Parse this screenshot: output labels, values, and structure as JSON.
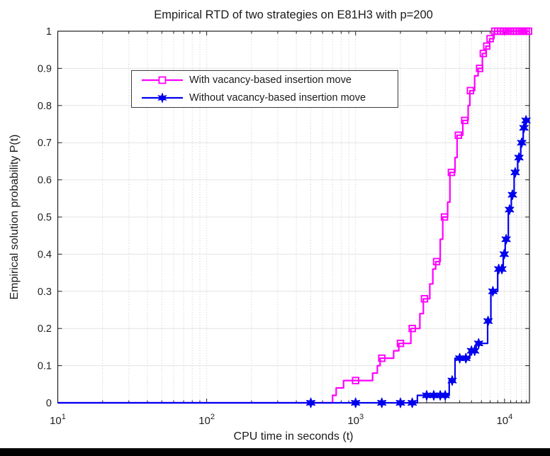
{
  "figure": {
    "background": "#ffffff",
    "bottom_bar_color": "#000000"
  },
  "chart_data": {
    "type": "line",
    "subtype": "empirical-step-cdf",
    "title": "Empirical RTD of two strategies on E81H3 with p=200",
    "xlabel": "CPU time in seconds (t)",
    "ylabel": "Empirical solution probability P(t)",
    "x_scale": "log10",
    "xlim": [
      10,
      14700
    ],
    "ylim": [
      0,
      1
    ],
    "grid": {
      "horizontal": "solid",
      "vertical": "dotted"
    },
    "legend_position": "upper-left-inside",
    "colors": {
      "axis": "#1f1f1f",
      "tick_text": "#1f1f1f",
      "grid_horizontal": "#e4e4e4",
      "grid_vertical": "#c9c9c9"
    },
    "x_major_ticks": [
      {
        "value": 10,
        "base": "10",
        "exp": "1"
      },
      {
        "value": 100,
        "base": "10",
        "exp": "2"
      },
      {
        "value": 1000,
        "base": "10",
        "exp": "3"
      },
      {
        "value": 10000,
        "base": "10",
        "exp": "4"
      }
    ],
    "x_minor_ticks": [
      20,
      30,
      40,
      50,
      60,
      70,
      80,
      90,
      200,
      300,
      400,
      500,
      600,
      700,
      800,
      900,
      2000,
      3000,
      4000,
      5000,
      6000,
      7000,
      8000,
      9000,
      11000,
      12000,
      13000,
      14000
    ],
    "y_ticks": [
      {
        "value": 0,
        "label": "0"
      },
      {
        "value": 0.1,
        "label": "0.1"
      },
      {
        "value": 0.2,
        "label": "0.2"
      },
      {
        "value": 0.3,
        "label": "0.3"
      },
      {
        "value": 0.4,
        "label": "0.4"
      },
      {
        "value": 0.5,
        "label": "0.5"
      },
      {
        "value": 0.6,
        "label": "0.6"
      },
      {
        "value": 0.7,
        "label": "0.7"
      },
      {
        "value": 0.8,
        "label": "0.8"
      },
      {
        "value": 0.9,
        "label": "0.9"
      },
      {
        "value": 1,
        "label": "1"
      }
    ],
    "series": [
      {
        "name": "With vacancy-based insertion move",
        "color": "#ff00ff",
        "marker": "open-square",
        "line_width": 2.2,
        "steps": [
          [
            700,
            0.02
          ],
          [
            740,
            0.04
          ],
          [
            830,
            0.06
          ],
          [
            1300,
            0.08
          ],
          [
            1400,
            0.1
          ],
          [
            1460,
            0.12
          ],
          [
            1800,
            0.14
          ],
          [
            1950,
            0.16
          ],
          [
            2350,
            0.2
          ],
          [
            2700,
            0.24
          ],
          [
            2850,
            0.28
          ],
          [
            3150,
            0.32
          ],
          [
            3300,
            0.36
          ],
          [
            3450,
            0.38
          ],
          [
            3700,
            0.44
          ],
          [
            3850,
            0.5
          ],
          [
            4150,
            0.54
          ],
          [
            4300,
            0.62
          ],
          [
            4650,
            0.66
          ],
          [
            4800,
            0.72
          ],
          [
            5250,
            0.76
          ],
          [
            5700,
            0.8
          ],
          [
            5850,
            0.84
          ],
          [
            6300,
            0.88
          ],
          [
            6650,
            0.9
          ],
          [
            7100,
            0.94
          ],
          [
            7500,
            0.96
          ],
          [
            7950,
            0.98
          ],
          [
            8500,
            1.0
          ]
        ],
        "markers": [
          [
            1000,
            0.06
          ],
          [
            1500,
            0.12
          ],
          [
            2000,
            0.16
          ],
          [
            2400,
            0.2
          ],
          [
            2900,
            0.28
          ],
          [
            3500,
            0.38
          ],
          [
            3950,
            0.5
          ],
          [
            4400,
            0.62
          ],
          [
            4900,
            0.72
          ],
          [
            5400,
            0.76
          ],
          [
            5900,
            0.84
          ],
          [
            6800,
            0.9
          ],
          [
            7200,
            0.94
          ],
          [
            7600,
            0.96
          ],
          [
            8000,
            0.98
          ],
          [
            8600,
            1.0
          ],
          [
            9000,
            1.0
          ],
          [
            9400,
            1.0
          ],
          [
            9800,
            1.0
          ],
          [
            10200,
            1.0
          ],
          [
            10600,
            1.0
          ],
          [
            11000,
            1.0
          ],
          [
            11500,
            1.0
          ],
          [
            12000,
            1.0
          ],
          [
            12500,
            1.0
          ],
          [
            13000,
            1.0
          ],
          [
            13500,
            1.0
          ],
          [
            14000,
            1.0
          ],
          [
            14500,
            1.0
          ]
        ]
      },
      {
        "name": "Without vacancy-based insertion move",
        "color": "#0000ee",
        "marker": "hexagram-star",
        "line_width": 2.2,
        "steps": [
          [
            2600,
            0.02
          ],
          [
            4250,
            0.06
          ],
          [
            4650,
            0.12
          ],
          [
            5850,
            0.14
          ],
          [
            6450,
            0.16
          ],
          [
            7700,
            0.22
          ],
          [
            8100,
            0.3
          ],
          [
            9000,
            0.36
          ],
          [
            9800,
            0.4
          ],
          [
            10100,
            0.44
          ],
          [
            10600,
            0.52
          ],
          [
            11100,
            0.56
          ],
          [
            11600,
            0.62
          ],
          [
            12250,
            0.66
          ],
          [
            12850,
            0.7
          ],
          [
            13350,
            0.74
          ],
          [
            13750,
            0.76
          ]
        ],
        "markers": [
          [
            500,
            0
          ],
          [
            1000,
            0
          ],
          [
            1500,
            0
          ],
          [
            2000,
            0
          ],
          [
            2400,
            0
          ],
          [
            3000,
            0.02
          ],
          [
            3350,
            0.02
          ],
          [
            3700,
            0.02
          ],
          [
            4000,
            0.02
          ],
          [
            4450,
            0.06
          ],
          [
            5000,
            0.12
          ],
          [
            5500,
            0.12
          ],
          [
            6000,
            0.14
          ],
          [
            6300,
            0.14
          ],
          [
            6700,
            0.16
          ],
          [
            7750,
            0.22
          ],
          [
            8350,
            0.3
          ],
          [
            9150,
            0.36
          ],
          [
            9600,
            0.36
          ],
          [
            9950,
            0.4
          ],
          [
            10250,
            0.44
          ],
          [
            10800,
            0.52
          ],
          [
            11300,
            0.56
          ],
          [
            11800,
            0.62
          ],
          [
            12500,
            0.66
          ],
          [
            13050,
            0.7
          ],
          [
            13500,
            0.74
          ],
          [
            13950,
            0.76
          ]
        ]
      }
    ]
  }
}
